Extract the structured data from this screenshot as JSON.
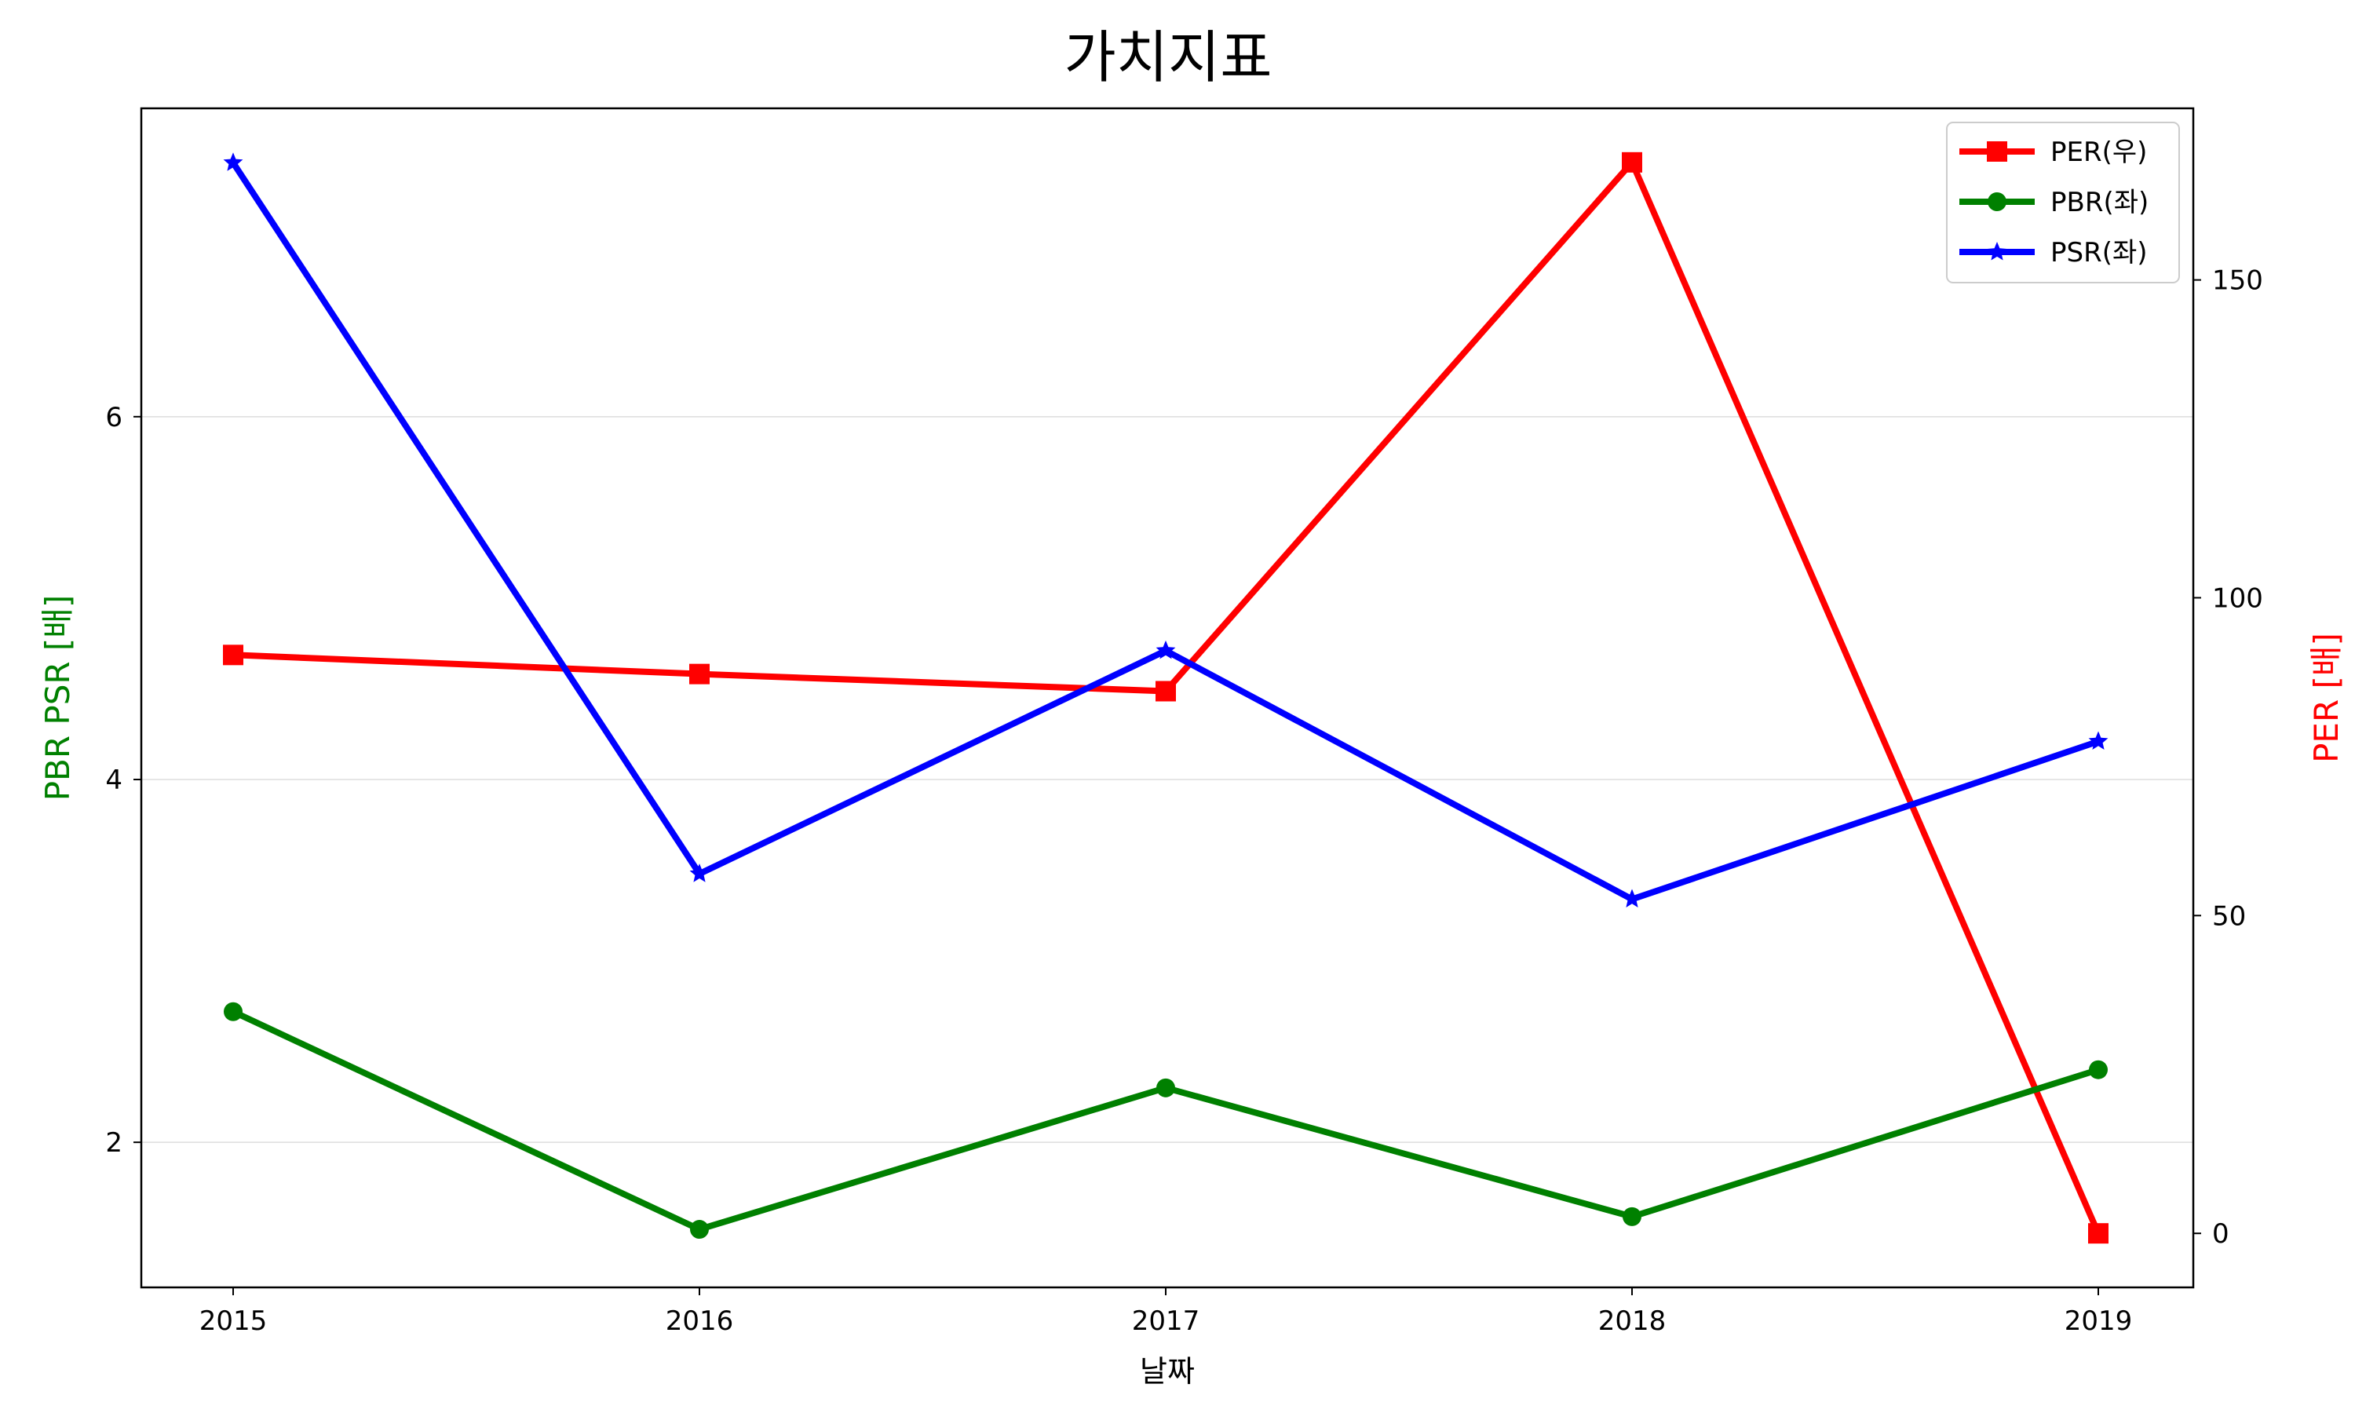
{
  "chart_data": {
    "type": "line",
    "title": "가치지표",
    "xlabel": "날짜",
    "ylabel_left": "PBR PSR [배]",
    "ylabel_right": "PER [배]",
    "categories": [
      "2015",
      "2016",
      "2017",
      "2018",
      "2019"
    ],
    "ylim_left": [
      1.2,
      7.7
    ],
    "ylim_right": [
      -8.5,
      177
    ],
    "yticks_left": [
      2,
      4,
      6
    ],
    "yticks_right": [
      0,
      50,
      100,
      150
    ],
    "grid": "horizontal, left axis",
    "legend_position": "top-right",
    "series": [
      {
        "name": "PER(우)",
        "axis": "right",
        "color": "#ff0000",
        "marker": "square",
        "values": [
          91.0,
          88.0,
          85.3,
          168.5,
          0.0
        ]
      },
      {
        "name": "PBR(좌)",
        "axis": "left",
        "color": "#008000",
        "marker": "circle",
        "values": [
          2.72,
          1.52,
          2.3,
          1.59,
          2.4
        ]
      },
      {
        "name": "PSR(좌)",
        "axis": "left",
        "color": "#0000ff",
        "marker": "star",
        "values": [
          7.4,
          3.48,
          4.71,
          3.34,
          4.21
        ]
      }
    ]
  }
}
